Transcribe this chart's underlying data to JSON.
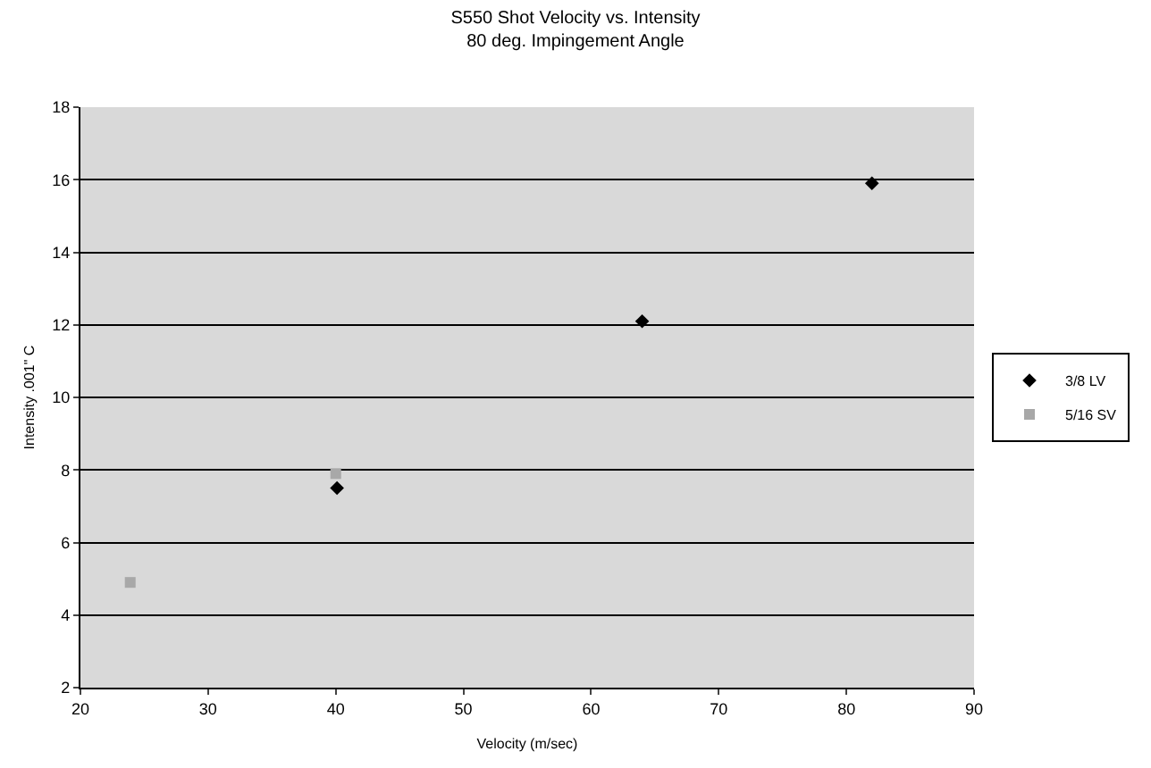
{
  "chart_data": {
    "type": "scatter",
    "title": "S550 Shot Velocity vs. Intensity",
    "subtitle": "80 deg. Impingement Angle",
    "xlabel": "Velocity (m/sec)",
    "ylabel": "Intensity .001\" C",
    "series": [
      {
        "name": "3/8 LV",
        "color": "#000000",
        "x": [
          40.1,
          64,
          82
        ],
        "values": [
          7.5,
          12.1,
          15.9
        ],
        "marker": "diamond"
      },
      {
        "name": "5/16 SV",
        "color": "#a8a8a8",
        "x": [
          23.9,
          40
        ],
        "values": [
          4.9,
          7.9
        ],
        "marker": "square"
      }
    ],
    "xlim": [
      20,
      90
    ],
    "xticks": [
      20,
      30,
      40,
      50,
      60,
      70,
      80,
      90
    ],
    "ylim": [
      2,
      18
    ],
    "yticks": [
      2,
      4,
      6,
      8,
      10,
      12,
      14,
      16,
      18
    ],
    "grid": "y",
    "legend": "right"
  }
}
